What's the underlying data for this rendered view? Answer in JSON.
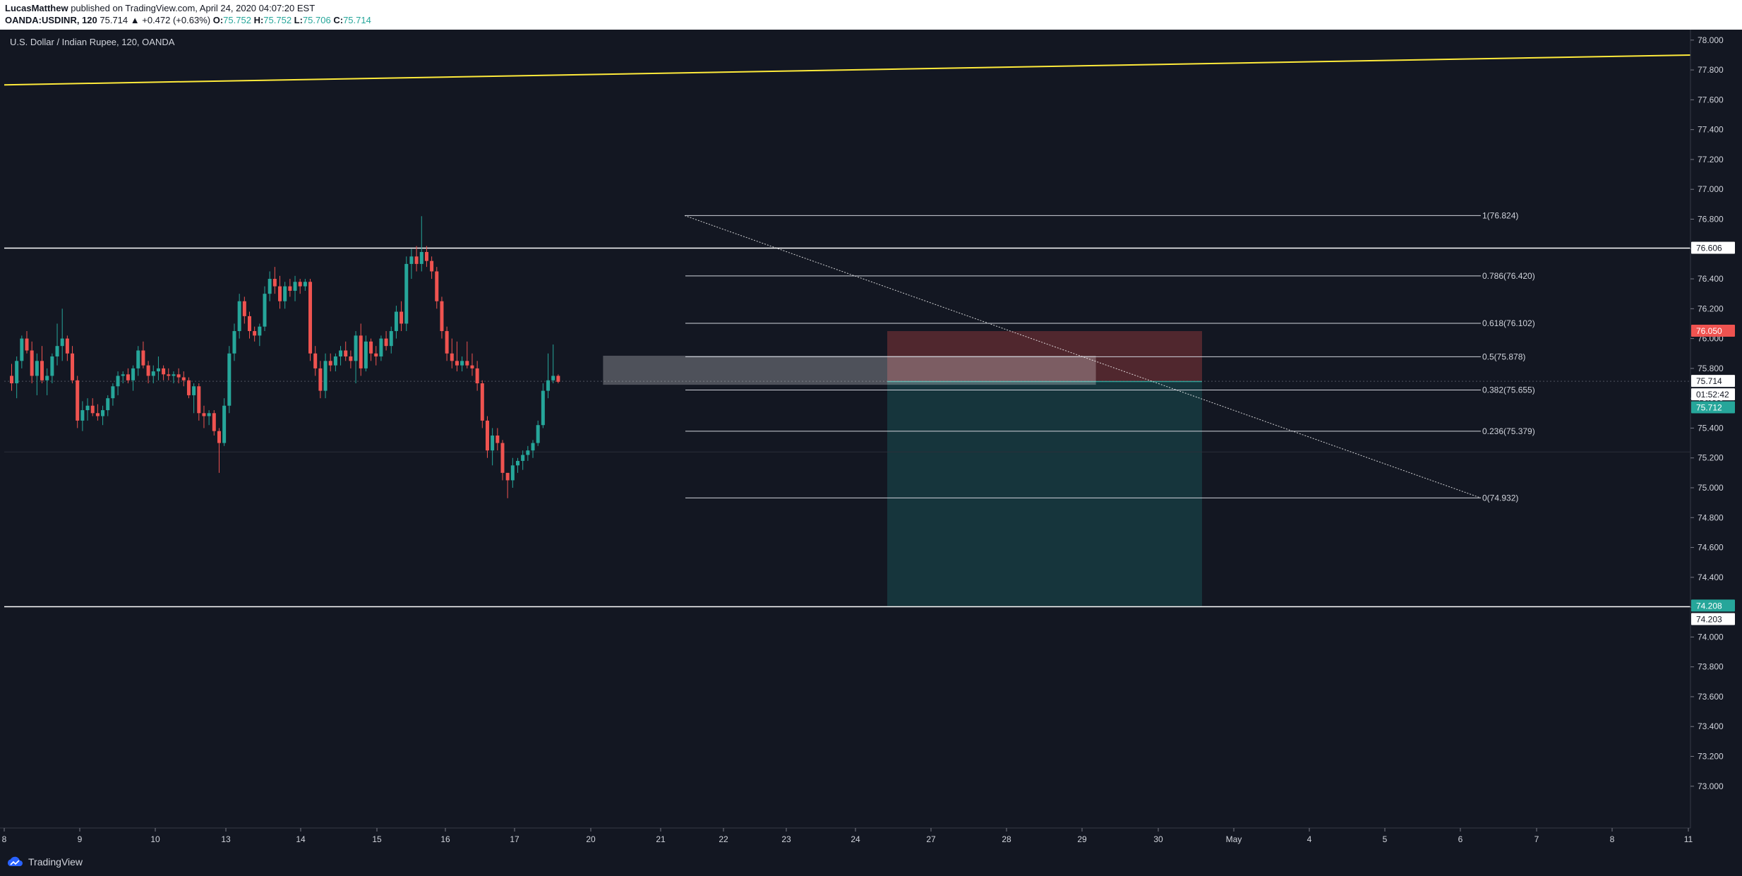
{
  "header": {
    "author": "LucasMatthew",
    "published": "published on TradingView.com, April 24, 2020 04:07:20 EST",
    "symbol": "OANDA:USDINR, 120",
    "last": "75.714",
    "change": "▲ +0.472 (+0.63%)",
    "o_label": "O:",
    "o": "75.752",
    "h_label": "H:",
    "h": "75.752",
    "l_label": "L:",
    "l": "75.706",
    "c_label": "C:",
    "c": "75.714"
  },
  "chart_data": {
    "type": "candlestick",
    "title": "U.S. Dollar / Indian Rupee, 120, OANDA",
    "ylim": [
      72.72,
      78.07
    ],
    "y_ticks": [
      "78.000",
      "77.800",
      "77.600",
      "77.400",
      "77.200",
      "77.000",
      "76.800",
      "76.600",
      "76.400",
      "76.200",
      "76.000",
      "75.800",
      "75.600",
      "75.400",
      "75.200",
      "75.000",
      "74.800",
      "74.600",
      "74.400",
      "74.200",
      "74.000",
      "73.800",
      "73.600",
      "73.400",
      "73.200",
      "73.000"
    ],
    "x_labels": [
      "8",
      "9",
      "10",
      "13",
      "14",
      "15",
      "16",
      "17",
      "20",
      "21",
      "22",
      "23",
      "24",
      "27",
      "28",
      "29",
      "30",
      "May",
      "4",
      "5",
      "6",
      "7",
      "8",
      "11"
    ],
    "price_tags": [
      {
        "value": "76.606",
        "bg": "#ffffff",
        "fg": "#131722"
      },
      {
        "value": "76.050",
        "bg": "#ef5350",
        "fg": "#ffffff"
      },
      {
        "value": "75.714",
        "bg": "#ffffff",
        "fg": "#131722"
      },
      {
        "value": "01:52:42",
        "bg": "#ffffff",
        "fg": "#131722"
      },
      {
        "value": "75.712",
        "bg": "#26a69a",
        "fg": "#ffffff"
      },
      {
        "value": "74.208",
        "bg": "#26a69a",
        "fg": "#ffffff"
      },
      {
        "value": "74.203",
        "bg": "#ffffff",
        "fg": "#131722"
      }
    ],
    "fib_levels": [
      {
        "label": "1(76.824)",
        "value": 76.824
      },
      {
        "label": "0.786(76.420)",
        "value": 76.42
      },
      {
        "label": "0.618(76.102)",
        "value": 76.102
      },
      {
        "label": "0.5(75.878)",
        "value": 75.878
      },
      {
        "label": "0.382(75.655)",
        "value": 75.655
      },
      {
        "label": "0.236(75.379)",
        "value": 75.379
      },
      {
        "label": "0(74.932)",
        "value": 74.932
      }
    ],
    "horizontal_lines": [
      76.606,
      74.203
    ],
    "position": {
      "entry": 75.712,
      "stop": 76.05,
      "target": 74.208
    },
    "candles": [
      [
        75.75,
        75.83,
        75.65,
        75.7
      ],
      [
        75.7,
        75.88,
        75.6,
        75.85
      ],
      [
        75.85,
        76.02,
        75.8,
        76.0
      ],
      [
        76.0,
        76.05,
        75.9,
        75.92
      ],
      [
        75.92,
        75.98,
        75.7,
        75.75
      ],
      [
        75.75,
        75.9,
        75.62,
        75.85
      ],
      [
        75.85,
        75.95,
        75.7,
        75.72
      ],
      [
        75.72,
        75.8,
        75.62,
        75.75
      ],
      [
        75.75,
        75.9,
        75.7,
        75.88
      ],
      [
        75.88,
        76.1,
        75.82,
        75.95
      ],
      [
        75.95,
        76.2,
        75.85,
        76.0
      ],
      [
        76.0,
        76.02,
        75.85,
        75.9
      ],
      [
        75.9,
        75.95,
        75.7,
        75.72
      ],
      [
        75.72,
        75.75,
        75.4,
        75.45
      ],
      [
        75.45,
        75.58,
        75.38,
        75.52
      ],
      [
        75.52,
        75.6,
        75.45,
        75.55
      ],
      [
        75.55,
        75.6,
        75.48,
        75.5
      ],
      [
        75.5,
        75.56,
        75.45,
        75.48
      ],
      [
        75.48,
        75.55,
        75.42,
        75.52
      ],
      [
        75.52,
        75.62,
        75.48,
        75.6
      ],
      [
        75.6,
        75.7,
        75.55,
        75.68
      ],
      [
        75.68,
        75.78,
        75.62,
        75.75
      ],
      [
        75.75,
        75.78,
        75.7,
        75.76
      ],
      [
        75.76,
        75.8,
        75.7,
        75.72
      ],
      [
        75.72,
        75.82,
        75.65,
        75.8
      ],
      [
        75.8,
        75.95,
        75.75,
        75.92
      ],
      [
        75.92,
        75.98,
        75.8,
        75.82
      ],
      [
        75.82,
        75.85,
        75.7,
        75.75
      ],
      [
        75.75,
        75.82,
        75.7,
        75.78
      ],
      [
        75.78,
        75.88,
        75.72,
        75.8
      ],
      [
        75.8,
        75.82,
        75.72,
        75.76
      ],
      [
        75.76,
        75.8,
        75.72,
        75.75
      ],
      [
        75.75,
        75.78,
        75.7,
        75.76
      ],
      [
        75.76,
        75.8,
        75.7,
        75.74
      ],
      [
        75.74,
        75.78,
        75.68,
        75.72
      ],
      [
        75.72,
        75.74,
        75.6,
        75.62
      ],
      [
        75.62,
        75.7,
        75.5,
        75.68
      ],
      [
        75.68,
        75.7,
        75.45,
        75.5
      ],
      [
        75.5,
        75.55,
        75.4,
        75.48
      ],
      [
        75.48,
        75.52,
        75.42,
        75.5
      ],
      [
        75.5,
        75.52,
        75.35,
        75.38
      ],
      [
        75.38,
        75.4,
        75.1,
        75.3
      ],
      [
        75.3,
        75.6,
        75.28,
        75.55
      ],
      [
        75.55,
        75.95,
        75.5,
        75.9
      ],
      [
        75.9,
        76.1,
        75.85,
        76.05
      ],
      [
        76.05,
        76.3,
        76.0,
        76.25
      ],
      [
        76.25,
        76.28,
        76.1,
        76.15
      ],
      [
        76.15,
        76.18,
        76.0,
        76.05
      ],
      [
        76.05,
        76.08,
        75.98,
        76.02
      ],
      [
        76.02,
        76.1,
        75.95,
        76.08
      ],
      [
        76.08,
        76.35,
        76.05,
        76.3
      ],
      [
        76.3,
        76.45,
        76.25,
        76.4
      ],
      [
        76.4,
        76.48,
        76.3,
        76.35
      ],
      [
        76.35,
        76.42,
        76.2,
        76.25
      ],
      [
        76.25,
        76.38,
        76.2,
        76.35
      ],
      [
        76.35,
        76.4,
        76.28,
        76.32
      ],
      [
        76.32,
        76.42,
        76.25,
        76.38
      ],
      [
        76.38,
        76.4,
        76.3,
        76.35
      ],
      [
        76.35,
        76.4,
        76.32,
        76.38
      ],
      [
        76.38,
        76.4,
        75.85,
        75.9
      ],
      [
        75.9,
        75.95,
        75.75,
        75.8
      ],
      [
        75.8,
        75.85,
        75.6,
        75.65
      ],
      [
        75.65,
        75.9,
        75.6,
        75.85
      ],
      [
        75.85,
        75.9,
        75.78,
        75.82
      ],
      [
        75.82,
        75.9,
        75.78,
        75.88
      ],
      [
        75.88,
        75.95,
        75.82,
        75.92
      ],
      [
        75.92,
        75.98,
        75.85,
        75.88
      ],
      [
        75.88,
        75.92,
        75.8,
        75.85
      ],
      [
        75.85,
        76.05,
        75.7,
        76.02
      ],
      [
        76.02,
        76.1,
        75.75,
        75.8
      ],
      [
        75.8,
        76.02,
        75.78,
        75.98
      ],
      [
        75.98,
        76.0,
        75.85,
        75.9
      ],
      [
        75.9,
        75.95,
        75.82,
        75.88
      ],
      [
        75.88,
        76.02,
        75.85,
        76.0
      ],
      [
        76.0,
        76.05,
        75.92,
        75.95
      ],
      [
        75.95,
        76.08,
        75.9,
        76.05
      ],
      [
        76.05,
        76.22,
        76.0,
        76.18
      ],
      [
        76.18,
        76.25,
        76.05,
        76.1
      ],
      [
        76.1,
        76.55,
        76.05,
        76.5
      ],
      [
        76.5,
        76.6,
        76.4,
        76.55
      ],
      [
        76.55,
        76.62,
        76.45,
        76.5
      ],
      [
        76.5,
        76.82,
        76.45,
        76.58
      ],
      [
        76.58,
        76.62,
        76.48,
        76.52
      ],
      [
        76.52,
        76.55,
        76.4,
        76.45
      ],
      [
        76.45,
        76.48,
        76.2,
        76.25
      ],
      [
        76.25,
        76.28,
        76.0,
        76.05
      ],
      [
        76.05,
        76.08,
        75.85,
        75.9
      ],
      [
        75.9,
        76.0,
        75.8,
        75.85
      ],
      [
        75.85,
        75.98,
        75.78,
        75.82
      ],
      [
        75.82,
        75.88,
        75.78,
        75.85
      ],
      [
        75.85,
        75.98,
        75.8,
        75.82
      ],
      [
        75.82,
        75.9,
        75.75,
        75.8
      ],
      [
        75.8,
        75.85,
        75.65,
        75.7
      ],
      [
        75.7,
        75.72,
        75.4,
        75.45
      ],
      [
        75.45,
        75.48,
        75.2,
        75.25
      ],
      [
        75.25,
        75.4,
        75.15,
        75.35
      ],
      [
        75.35,
        75.4,
        75.25,
        75.3
      ],
      [
        75.3,
        75.32,
        75.05,
        75.1
      ],
      [
        75.1,
        75.05,
        74.93,
        75.05
      ],
      [
        75.05,
        75.2,
        75.0,
        75.15
      ],
      [
        75.15,
        75.2,
        75.1,
        75.18
      ],
      [
        75.18,
        75.25,
        75.12,
        75.22
      ],
      [
        75.22,
        75.28,
        75.18,
        75.25
      ],
      [
        75.25,
        75.32,
        75.2,
        75.3
      ],
      [
        75.3,
        75.45,
        75.28,
        75.42
      ],
      [
        75.42,
        75.7,
        75.4,
        75.65
      ],
      [
        75.65,
        75.9,
        75.6,
        75.72
      ],
      [
        75.72,
        75.96,
        75.7,
        75.75
      ],
      [
        75.75,
        75.76,
        75.7,
        75.71
      ]
    ]
  },
  "footer": {
    "brand": "TradingView"
  }
}
